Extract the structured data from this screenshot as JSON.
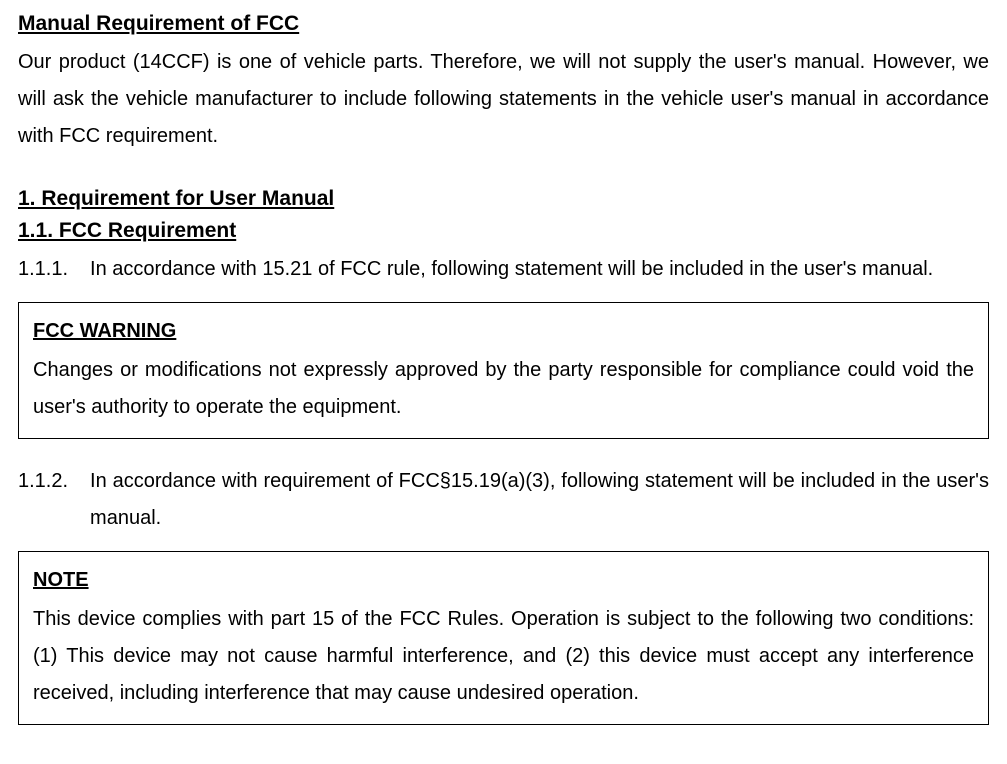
{
  "title": "Manual Requirement of FCC",
  "intro": "Our product (14CCF) is one of vehicle parts.  Therefore, we will not supply the user's manual. However, we will ask the vehicle manufacturer to include following statements in the vehicle user's manual in accordance with FCC requirement.",
  "section1": {
    "heading": "1. Requirement for User Manual",
    "subsection": {
      "heading": "1.1. FCC Requirement",
      "items": [
        {
          "number": "1.1.1.",
          "text": "In accordance with 15.21 of FCC rule, following statement will be included in the user's manual.",
          "note": {
            "heading": "FCC WARNING",
            "body": "Changes or modifications not expressly approved by the party responsible for compliance could void the user's authority to operate the equipment."
          }
        },
        {
          "number": "1.1.2.",
          "text": "In accordance with requirement of FCC§15.19(a)(3), following statement will be included in the user's manual.",
          "note": {
            "heading": "NOTE",
            "body": "This device complies with part 15 of the FCC Rules.  Operation is subject to the following two conditions: (1) This device may not cause harmful interference, and (2) this device must accept any interference received, including interference that may cause undesired operation."
          }
        }
      ]
    }
  },
  "colors": {
    "text": "#000000",
    "background": "#ffffff",
    "border": "#000000"
  },
  "typography": {
    "font_family": "Arial, sans-serif",
    "title_fontsize": 21,
    "body_fontsize": 20,
    "heading_weight": "bold",
    "line_height": 1.85
  }
}
